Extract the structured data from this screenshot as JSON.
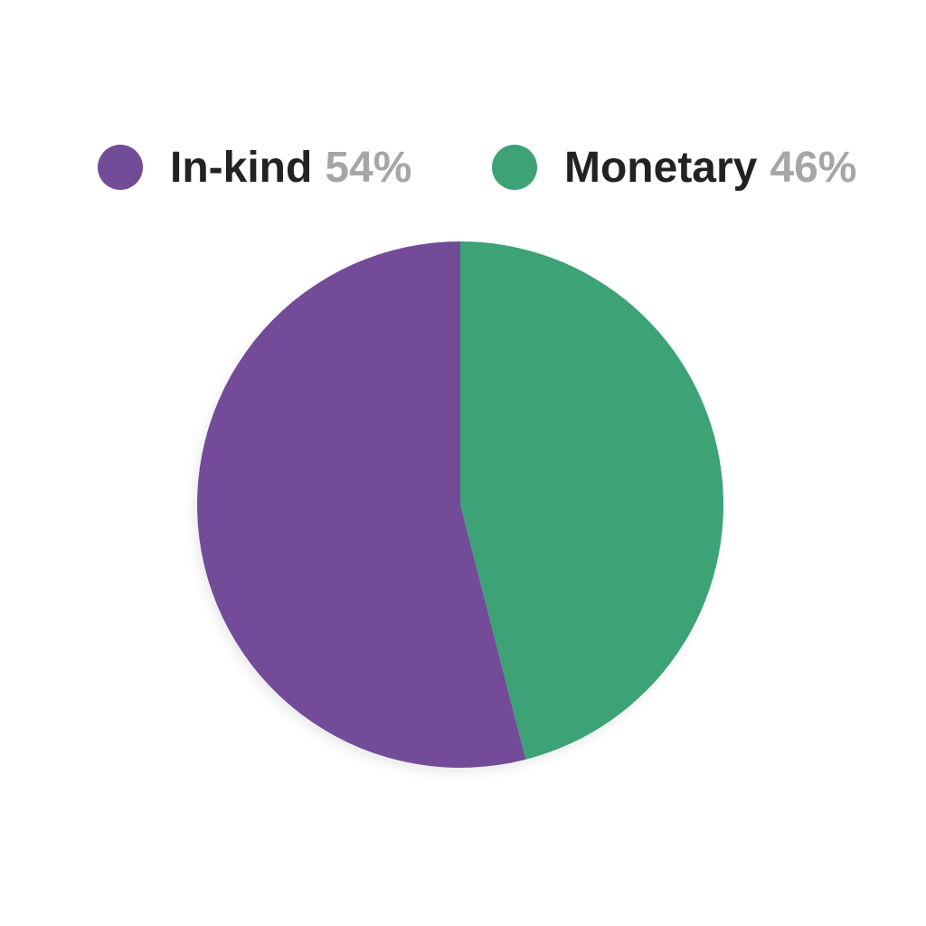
{
  "chart_data": {
    "type": "pie",
    "title": "",
    "legend_position": "top",
    "slices": [
      {
        "label": "In-kind",
        "value": 54,
        "display": "54%",
        "color": "#734c98"
      },
      {
        "label": "Monetary",
        "value": 46,
        "display": "46%",
        "color": "#3da276"
      }
    ]
  }
}
